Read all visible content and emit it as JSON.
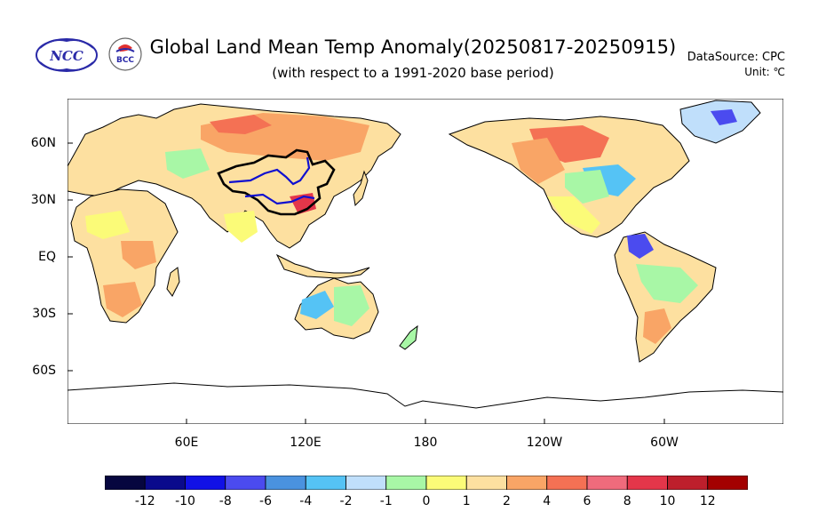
{
  "header": {
    "title": "Global Land Mean Temp Anomaly(20250817-20250915)",
    "subtitle": "(with respect to a 1991-2020 base period)",
    "datasource": "DataSource: CPC",
    "unit": "Unit: ℃"
  },
  "logos": [
    {
      "name": "ncc-logo",
      "text": "NCC"
    },
    {
      "name": "bcc-logo",
      "text": "BCC"
    }
  ],
  "axes": {
    "y_ticks": [
      "60N",
      "30N",
      "EQ",
      "30S",
      "60S"
    ],
    "x_ticks": [
      "60E",
      "120E",
      "180",
      "120W",
      "60W"
    ]
  },
  "colorbar": {
    "labels": [
      "-12",
      "-10",
      "-8",
      "-6",
      "-4",
      "-2",
      "-1",
      "0",
      "1",
      "2",
      "4",
      "6",
      "8",
      "10",
      "12"
    ],
    "colors": [
      "#06063f",
      "#0a0a8c",
      "#1111e6",
      "#4b4bef",
      "#4a92df",
      "#55c3f5",
      "#c0dffb",
      "#a8f7a6",
      "#fbfb78",
      "#fde0a0",
      "#f9a566",
      "#f47154",
      "#ef6b7c",
      "#e4364a",
      "#bd1f2c",
      "#a30000"
    ]
  },
  "map_data": {
    "projection": "equirectangular, centered on 180",
    "lon_range": [
      0,
      360
    ],
    "lat_range": [
      -90,
      90
    ],
    "colors": {
      "land_base": "#fde0a0",
      "warm": "#f9a566",
      "hot": "#f47154",
      "neutral": "#fbfb78",
      "cool": "#a8f7a6",
      "cold": "#55c3f5",
      "very_cold": "#4b4bef"
    }
  }
}
